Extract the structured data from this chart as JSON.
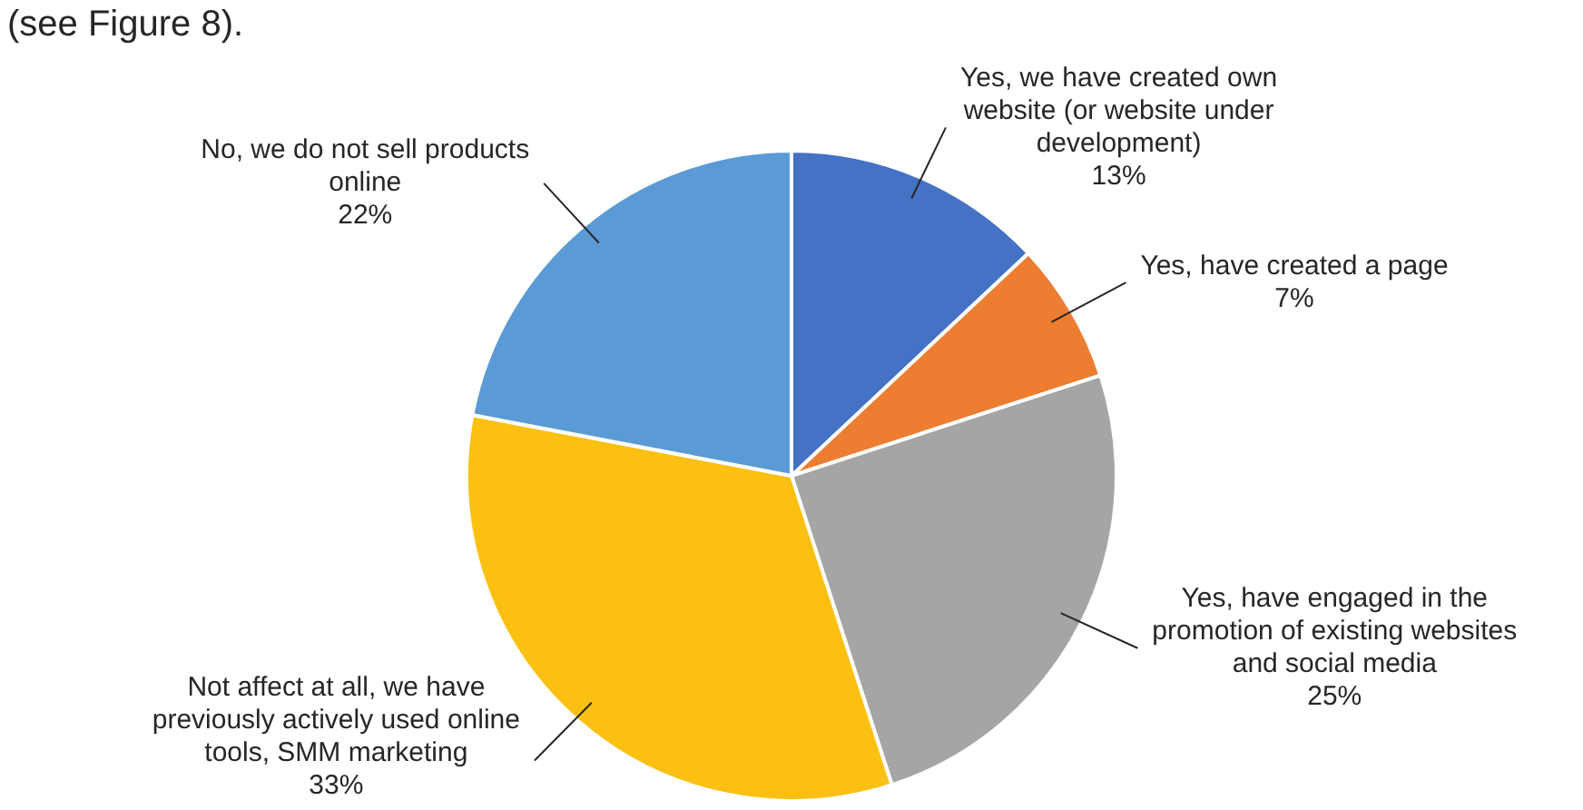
{
  "chart_data": {
    "type": "pie",
    "categories": [
      "Yes, we have created own website (or website under development)",
      "Yes, have created a page",
      "Yes, have engaged in the promotion of existing websites and social media",
      "Not affect at all, we have previously actively used online tools, SMM marketing",
      "No, we do not sell products online"
    ],
    "values": [
      13,
      7,
      25,
      33,
      22
    ],
    "value_labels": [
      "13%",
      "7%",
      "25%",
      "33%",
      "22%"
    ],
    "colors": [
      "#4472c4",
      "#ed7d31",
      "#a5a5a5",
      "#fbc012",
      "#5b9bd5"
    ],
    "annotations": [
      "(see Figure 8)."
    ],
    "legend": false
  }
}
